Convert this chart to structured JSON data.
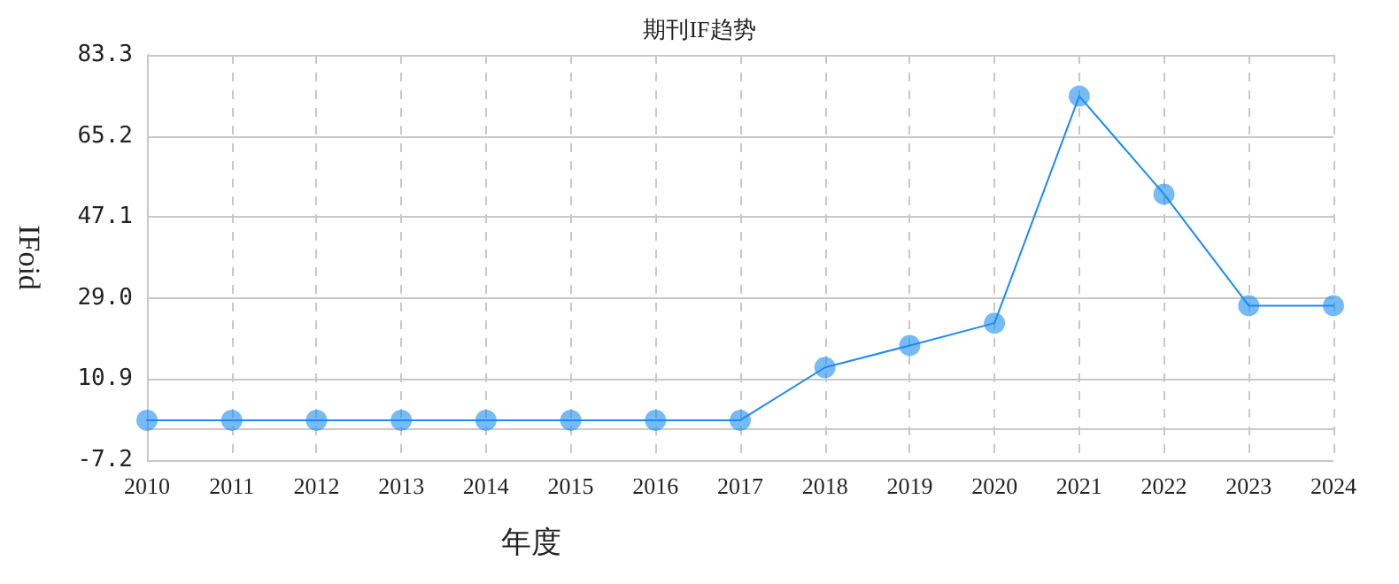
{
  "chart_data": {
    "type": "line",
    "title": "期刊IF趋势",
    "xlabel": "年度",
    "ylabel": "IFoid",
    "categories": [
      "2010",
      "2011",
      "2012",
      "2013",
      "2014",
      "2015",
      "2016",
      "2017",
      "2018",
      "2019",
      "2020",
      "2021",
      "2022",
      "2023",
      "2024"
    ],
    "series": [
      {
        "color": "#1a8cf0",
        "values": [
          1.7,
          1.7,
          1.7,
          1.7,
          1.7,
          1.7,
          1.7,
          1.7,
          13.5,
          18.4,
          23.4,
          74.1,
          52.2,
          27.3,
          27.3
        ]
      }
    ],
    "ylim": [
      -7.2,
      83.3
    ],
    "yticks": [
      -7.2,
      10.9,
      {
        "value": 29,
        "label": "29.0"
      },
      47.1,
      65.2,
      83.3
    ],
    "grid": true,
    "marker": "circle",
    "line_style": "solid"
  }
}
